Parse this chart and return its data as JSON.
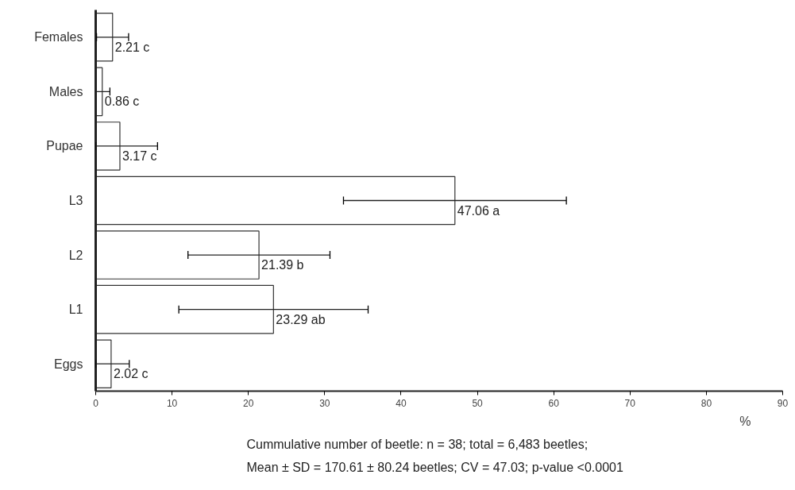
{
  "chart_data": {
    "type": "bar",
    "orientation": "horizontal",
    "xlabel": "%",
    "categories": [
      "Females",
      "Males",
      "Pupae",
      "L3",
      "L2",
      "L1",
      "Eggs"
    ],
    "series": [
      {
        "color": "#ffffff",
        "values": [
          2.21,
          0.86,
          3.17,
          47.06,
          21.39,
          23.29,
          2.02
        ],
        "errors": [
          2.1,
          1.0,
          [
            0,
            8.1
          ],
          14.6,
          9.3,
          12.4,
          [
            0,
            4.4
          ]
        ],
        "value_labels": [
          "2.21 c",
          "0.86 c",
          "3.17 c",
          "47.06 a",
          "21.39 b",
          "23.29 ab",
          "2.02 c"
        ]
      }
    ],
    "xlim": [
      0,
      90
    ],
    "xticks": [
      0,
      10,
      20,
      30,
      40,
      50,
      60,
      70,
      80,
      90
    ],
    "grid": false,
    "annotations": [
      "Cummulative number of beetle: n = 38; total = 6,483 beetles;",
      "Mean ± SD = 170.61 ± 80.24 beetles; CV = 47.03;  p-value <0.0001"
    ]
  }
}
